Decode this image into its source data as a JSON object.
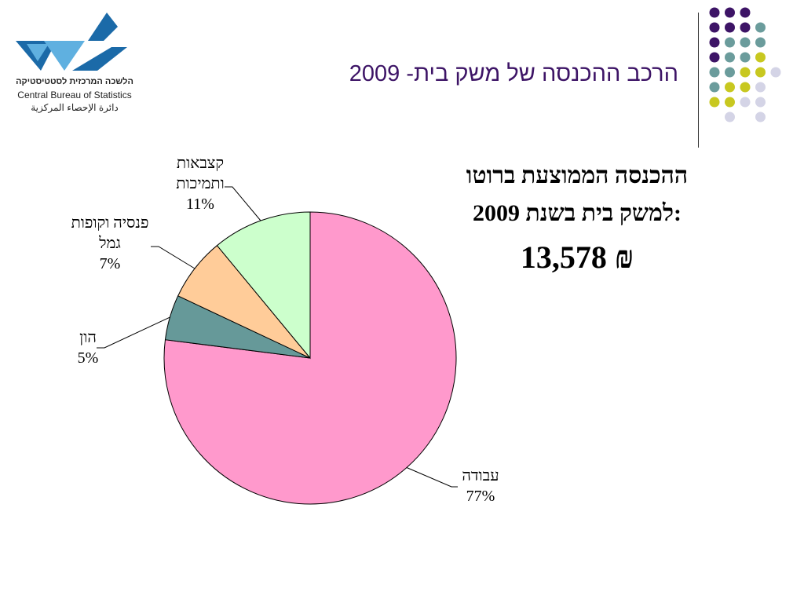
{
  "logo": {
    "hebrew": "הלשכה המרכזית לסטטיסטיקה",
    "english": "Central Bureau of Statistics",
    "arabic": "دائرة الإحصاء المركزية",
    "colors": {
      "dark": "#1b6aa8",
      "light": "#5fb0e0"
    }
  },
  "slide": {
    "title": "הרכב ההכנסה של משק בית- 2009"
  },
  "summary": {
    "line1": "ההכנסה הממוצעת ברוטו",
    "line2": "למשק בית בשנת 2009:",
    "amount": "13,578 ₪"
  },
  "decor_dots": {
    "colors": {
      "purple": "#3d1466",
      "teal": "#6b9c9c",
      "yellow": "#c8c820",
      "lavender": "#d4d4e6"
    }
  },
  "chart_data": {
    "type": "pie",
    "start_angle_deg": 0,
    "direction": "clockwise",
    "slices": [
      {
        "label_lines": [
          "עבודה"
        ],
        "pct_label": "77%",
        "value": 77,
        "color": "#ff99cc"
      },
      {
        "label_lines": [
          "הון"
        ],
        "pct_label": "5%",
        "value": 5,
        "color": "#669999"
      },
      {
        "label_lines": [
          "פנסיה וקופות",
          "גמל"
        ],
        "pct_label": "7%",
        "value": 7,
        "color": "#ffcc99"
      },
      {
        "label_lines": [
          "קצבאות",
          "ותמיכות"
        ],
        "pct_label": "11%",
        "value": 11,
        "color": "#ccffcc"
      }
    ]
  }
}
